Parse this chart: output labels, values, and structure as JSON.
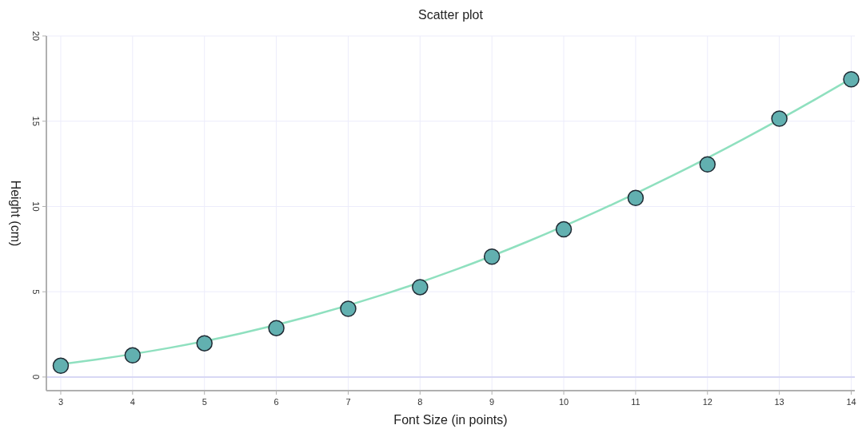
{
  "chart_data": {
    "type": "scatter",
    "title": "Scatter plot",
    "xlabel": "Font Size (in points)",
    "ylabel": "Height (cm)",
    "x": [
      3,
      4,
      5,
      6,
      7,
      8,
      9,
      10,
      11,
      12,
      13,
      14
    ],
    "series": [
      {
        "type": "line",
        "color": "#8fe0bf",
        "x": [
          3,
          3.5,
          4.5,
          5.5,
          6.5,
          7.5,
          8.5,
          9.5,
          10.5,
          11.5,
          12.5,
          13.5,
          14
        ],
        "values": [
          0.75,
          1.03,
          1.7,
          2.55,
          3.6,
          4.85,
          6.3,
          7.95,
          9.78,
          11.78,
          13.95,
          16.28,
          17.5
        ]
      },
      {
        "color": "#62b0b0",
        "marker": "circle",
        "values": [
          0.66,
          1.27,
          1.98,
          2.87,
          4.0,
          5.27,
          7.06,
          8.66,
          10.5,
          12.47,
          15.15,
          17.46
        ]
      }
    ],
    "xlim": [
      2.8,
      14.05
    ],
    "xticks": [
      3,
      4,
      5,
      6,
      7,
      8,
      9,
      10,
      11,
      12,
      13,
      14
    ],
    "ylim": [
      -0.8,
      20
    ],
    "yticks": [
      0,
      5,
      10,
      15,
      20
    ],
    "grid": true
  }
}
